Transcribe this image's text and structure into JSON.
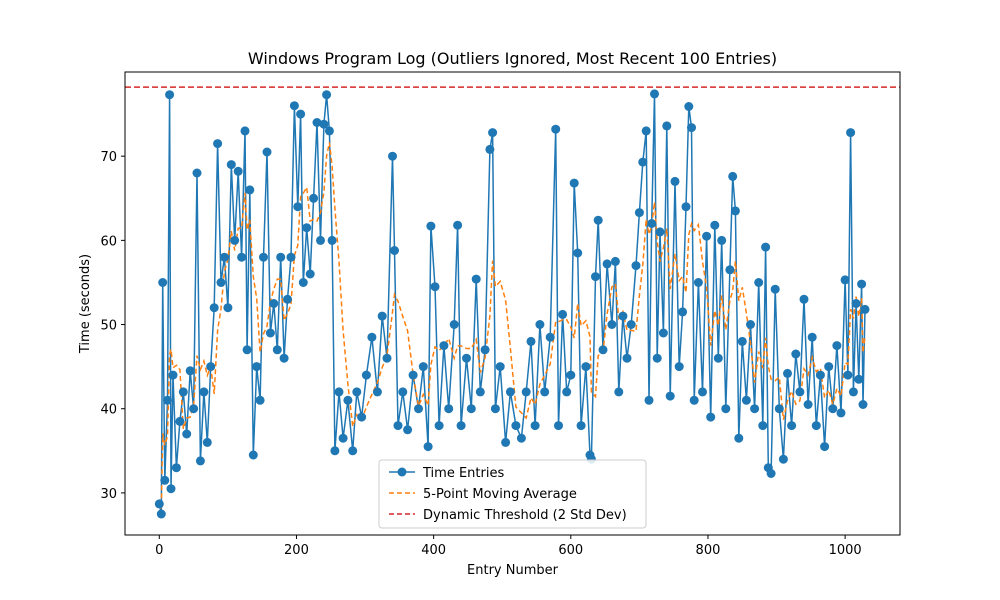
{
  "chart_data": {
    "type": "line",
    "title": "Windows Program Log (Outliers Ignored, Most Recent 100 Entries)",
    "xlabel": "Entry Number",
    "ylabel": "Time (seconds)",
    "xlim": [
      -50,
      1080
    ],
    "ylim": [
      25,
      80
    ],
    "xticks": [
      0,
      200,
      400,
      600,
      800,
      1000
    ],
    "yticks": [
      30,
      40,
      50,
      60,
      70
    ],
    "grid": false,
    "legend_position": "lower center",
    "colors": {
      "entries": "#1f77b4",
      "moving_average": "#ff7f0e",
      "threshold": "#d62728"
    },
    "threshold": {
      "name": "Dynamic Threshold (2 Std Dev)",
      "value": 78.2
    },
    "series": [
      {
        "name": "Time Entries"
      },
      {
        "name": "5-Point Moving Average",
        "window": 5
      }
    ],
    "anchors": [
      [
        0,
        28.7
      ],
      [
        3,
        27.5
      ],
      [
        5,
        55.0
      ],
      [
        8,
        31.5
      ],
      [
        12,
        41.0
      ],
      [
        15,
        77.3
      ],
      [
        17,
        30.5
      ],
      [
        20,
        44.0
      ],
      [
        25,
        33.0
      ],
      [
        30,
        38.5
      ],
      [
        35,
        42.0
      ],
      [
        40,
        37.0
      ],
      [
        45,
        44.5
      ],
      [
        50,
        40.0
      ],
      [
        55,
        68.0
      ],
      [
        60,
        33.8
      ],
      [
        65,
        42.0
      ],
      [
        70,
        36.0
      ],
      [
        75,
        45.0
      ],
      [
        80,
        52.0
      ],
      [
        85,
        71.5
      ],
      [
        90,
        55.0
      ],
      [
        95,
        58.0
      ],
      [
        100,
        52.0
      ],
      [
        105,
        69.0
      ],
      [
        110,
        60.0
      ],
      [
        115,
        68.2
      ],
      [
        120,
        58.0
      ],
      [
        125,
        73.0
      ],
      [
        128,
        47.0
      ],
      [
        132,
        66.0
      ],
      [
        137,
        34.5
      ],
      [
        142,
        45.0
      ],
      [
        147,
        41.0
      ],
      [
        152,
        58.0
      ],
      [
        157,
        70.5
      ],
      [
        162,
        49.0
      ],
      [
        167,
        52.5
      ],
      [
        172,
        47.0
      ],
      [
        177,
        58.0
      ],
      [
        182,
        46.0
      ],
      [
        187,
        53.0
      ],
      [
        192,
        58.0
      ],
      [
        197,
        76.0
      ],
      [
        202,
        64.0
      ],
      [
        206,
        75.0
      ],
      [
        210,
        55.0
      ],
      [
        215,
        61.5
      ],
      [
        220,
        56.0
      ],
      [
        225,
        65.0
      ],
      [
        230,
        74.0
      ],
      [
        235,
        60.0
      ],
      [
        240,
        73.8
      ],
      [
        244,
        77.3
      ],
      [
        248,
        73.0
      ],
      [
        252,
        60.0
      ],
      [
        256,
        35.0
      ],
      [
        262,
        42.0
      ],
      [
        268,
        36.5
      ],
      [
        275,
        41.0
      ],
      [
        282,
        35.0
      ],
      [
        288,
        42.0
      ],
      [
        295,
        39.0
      ],
      [
        302,
        44.0
      ],
      [
        310,
        48.5
      ],
      [
        318,
        42.0
      ],
      [
        325,
        51.0
      ],
      [
        332,
        46.0
      ],
      [
        340,
        70.0
      ],
      [
        343,
        58.8
      ],
      [
        348,
        38.0
      ],
      [
        355,
        42.0
      ],
      [
        362,
        37.5
      ],
      [
        370,
        44.0
      ],
      [
        378,
        40.0
      ],
      [
        385,
        45.0
      ],
      [
        392,
        35.5
      ],
      [
        396,
        61.7
      ],
      [
        402,
        54.5
      ],
      [
        408,
        38.0
      ],
      [
        415,
        47.5
      ],
      [
        422,
        40.0
      ],
      [
        430,
        50.0
      ],
      [
        435,
        61.8
      ],
      [
        440,
        38.0
      ],
      [
        448,
        46.0
      ],
      [
        455,
        40.0
      ],
      [
        462,
        55.4
      ],
      [
        468,
        42.0
      ],
      [
        475,
        47.0
      ],
      [
        482,
        70.8
      ],
      [
        486,
        72.8
      ],
      [
        490,
        40.0
      ],
      [
        497,
        45.0
      ],
      [
        505,
        36.0
      ],
      [
        512,
        42.0
      ],
      [
        520,
        38.0
      ],
      [
        528,
        36.5
      ],
      [
        535,
        42.0
      ],
      [
        542,
        48.0
      ],
      [
        548,
        38.0
      ],
      [
        555,
        50.0
      ],
      [
        562,
        42.0
      ],
      [
        570,
        48.5
      ],
      [
        578,
        73.2
      ],
      [
        582,
        38.0
      ],
      [
        588,
        51.2
      ],
      [
        594,
        42.0
      ],
      [
        600,
        44.0
      ],
      [
        605,
        66.8
      ],
      [
        610,
        58.5
      ],
      [
        615,
        38.0
      ],
      [
        622,
        45.0
      ],
      [
        628,
        34.5
      ],
      [
        630,
        34.0
      ],
      [
        636,
        55.7
      ],
      [
        640,
        62.4
      ],
      [
        647,
        47.0
      ],
      [
        653,
        57.2
      ],
      [
        660,
        50.0
      ],
      [
        665,
        57.5
      ],
      [
        670,
        42.0
      ],
      [
        676,
        51.0
      ],
      [
        682,
        46.0
      ],
      [
        688,
        50.0
      ],
      [
        695,
        57.0
      ],
      [
        700,
        63.3
      ],
      [
        705,
        69.3
      ],
      [
        710,
        73.0
      ],
      [
        714,
        41.0
      ],
      [
        718,
        62.0
      ],
      [
        722,
        77.4
      ],
      [
        726,
        46.0
      ],
      [
        730,
        61.0
      ],
      [
        735,
        49.0
      ],
      [
        740,
        73.6
      ],
      [
        745,
        41.5
      ],
      [
        752,
        67.0
      ],
      [
        758,
        45.0
      ],
      [
        763,
        51.5
      ],
      [
        768,
        64.0
      ],
      [
        772,
        75.9
      ],
      [
        776,
        73.4
      ],
      [
        780,
        41.0
      ],
      [
        786,
        55.0
      ],
      [
        792,
        42.0
      ],
      [
        798,
        60.5
      ],
      [
        804,
        39.0
      ],
      [
        810,
        61.8
      ],
      [
        815,
        46.0
      ],
      [
        820,
        60.0
      ],
      [
        826,
        40.0
      ],
      [
        832,
        56.5
      ],
      [
        836,
        67.6
      ],
      [
        840,
        63.5
      ],
      [
        845,
        36.5
      ],
      [
        850,
        48.0
      ],
      [
        856,
        41.0
      ],
      [
        862,
        50.0
      ],
      [
        868,
        40.0
      ],
      [
        874,
        55.0
      ],
      [
        880,
        38.0
      ],
      [
        884,
        59.2
      ],
      [
        888,
        33.0
      ],
      [
        892,
        32.3
      ],
      [
        898,
        54.2
      ],
      [
        904,
        40.0
      ],
      [
        910,
        34.0
      ],
      [
        916,
        44.2
      ],
      [
        922,
        38.0
      ],
      [
        928,
        46.5
      ],
      [
        934,
        42.0
      ],
      [
        940,
        53.0
      ],
      [
        946,
        40.5
      ],
      [
        952,
        48.5
      ],
      [
        958,
        38.0
      ],
      [
        964,
        44.0
      ],
      [
        970,
        35.5
      ],
      [
        976,
        45.0
      ],
      [
        982,
        40.0
      ],
      [
        988,
        47.5
      ],
      [
        994,
        39.5
      ],
      [
        1000,
        55.3
      ],
      [
        1004,
        44.0
      ],
      [
        1008,
        72.8
      ],
      [
        1012,
        42.0
      ],
      [
        1016,
        52.5
      ],
      [
        1020,
        43.5
      ],
      [
        1024,
        54.8
      ],
      [
        1026,
        40.5
      ],
      [
        1029,
        51.8
      ]
    ]
  }
}
